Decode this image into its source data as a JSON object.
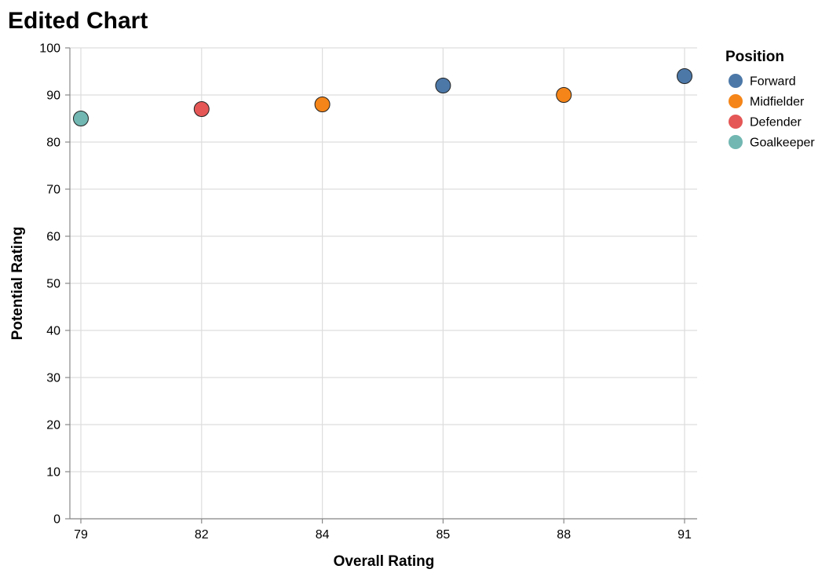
{
  "chart_data": {
    "type": "scatter",
    "title": "Edited Chart",
    "xlabel": "Overall Rating",
    "ylabel": "Potential Rating",
    "x_scale": "ordinal",
    "x_categories": [
      "79",
      "82",
      "84",
      "85",
      "88",
      "91"
    ],
    "ylim": [
      0,
      100
    ],
    "y_ticks": [
      0,
      10,
      20,
      30,
      40,
      50,
      60,
      70,
      80,
      90,
      100
    ],
    "grid": true,
    "legend": {
      "title": "Position",
      "placement": "top-right",
      "entries": [
        {
          "name": "Forward",
          "color": "#4c78a8"
        },
        {
          "name": "Midfielder",
          "color": "#f58518"
        },
        {
          "name": "Defender",
          "color": "#e45756"
        },
        {
          "name": "Goalkeeper",
          "color": "#72b7b2"
        }
      ]
    },
    "points": [
      {
        "x": "79",
        "y": 85,
        "position": "Goalkeeper"
      },
      {
        "x": "82",
        "y": 87,
        "position": "Defender"
      },
      {
        "x": "84",
        "y": 88,
        "position": "Midfielder"
      },
      {
        "x": "85",
        "y": 92,
        "position": "Forward"
      },
      {
        "x": "88",
        "y": 90,
        "position": "Midfielder"
      },
      {
        "x": "91",
        "y": 94,
        "position": "Forward"
      }
    ]
  }
}
